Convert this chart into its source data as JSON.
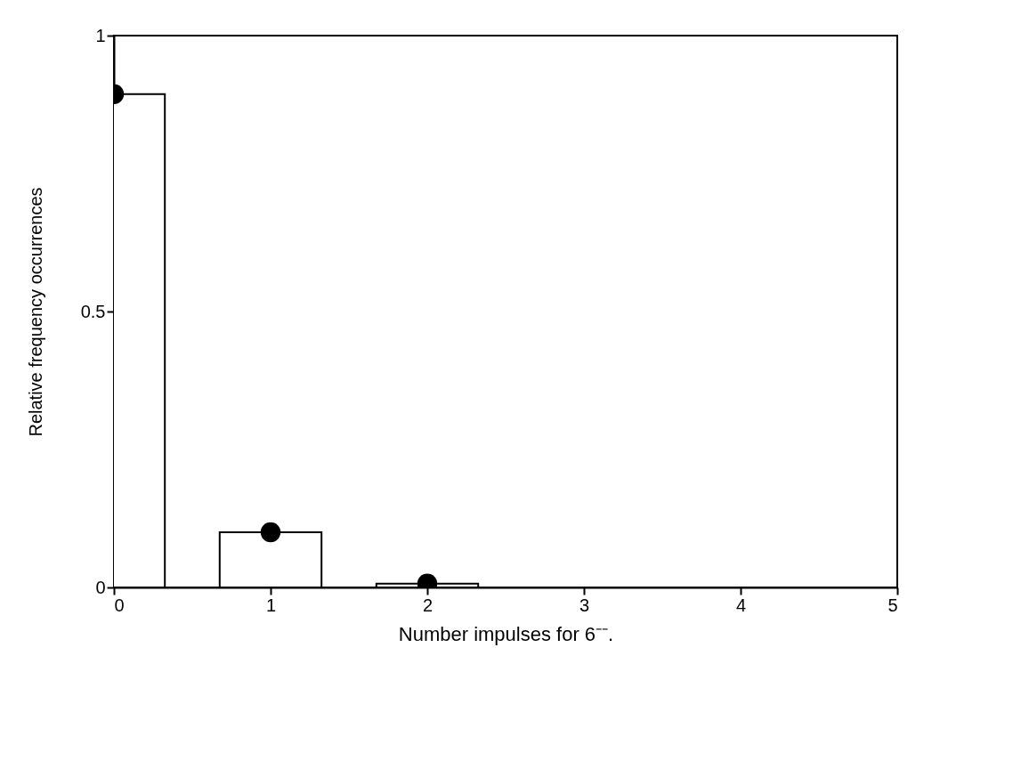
{
  "chart_data": {
    "type": "bar",
    "xlabel": "Number impulses for 6⁻⁻.",
    "ylabel": "Relative frequency occurrences",
    "x": [
      0,
      1,
      2
    ],
    "series": [
      {
        "color": "#ffffff",
        "values": [
          0.894,
          0.1,
          0.007
        ]
      },
      {
        "type": "scatter",
        "color": "#000000",
        "values": [
          0.894,
          0.1,
          0.007
        ]
      }
    ],
    "marker": "circle",
    "xlim": [
      0,
      5
    ],
    "xticks": [
      0,
      1,
      2,
      3,
      4,
      5
    ],
    "ylim": [
      0,
      1
    ],
    "yticks": [
      0,
      0.5,
      1
    ]
  }
}
